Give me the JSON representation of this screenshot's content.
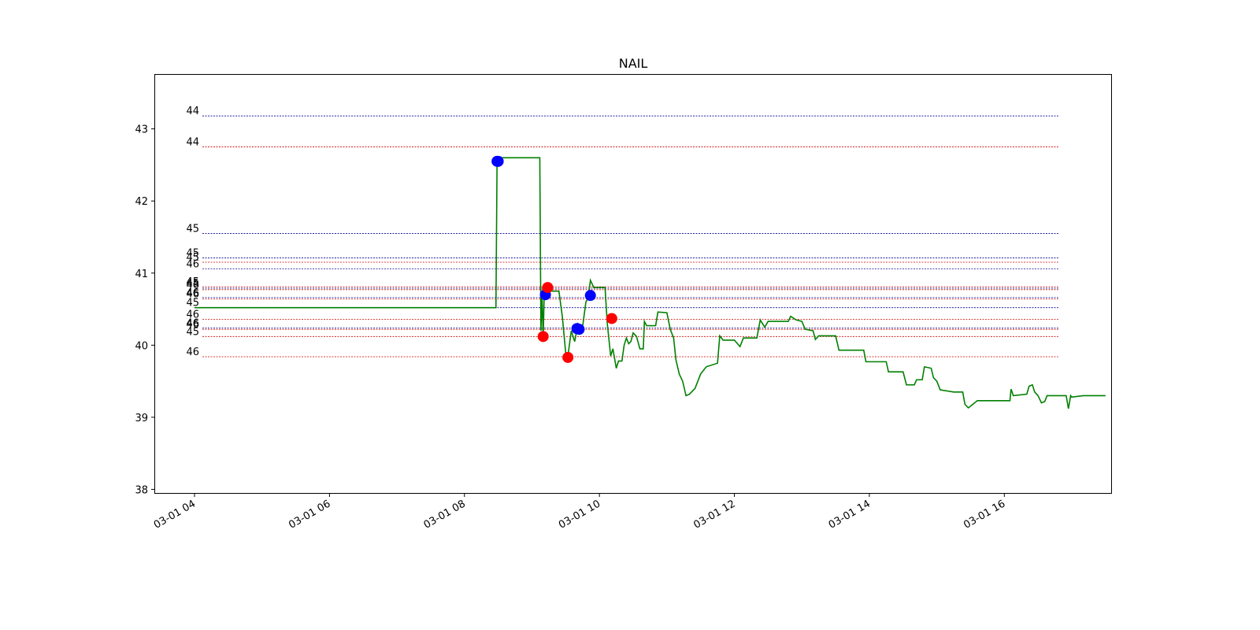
{
  "chart_data": {
    "type": "line",
    "title": "NAIL",
    "xlabel": "",
    "ylabel": "",
    "x_axis_type": "datetime",
    "xlim": [
      "03-01 03:25",
      "03-01 17:35"
    ],
    "ylim": [
      37.95,
      43.75
    ],
    "x_ticks": [
      {
        "t": "03-01 04:00",
        "label": "03-01 04"
      },
      {
        "t": "03-01 06:00",
        "label": "03-01 06"
      },
      {
        "t": "03-01 08:00",
        "label": "03-01 08"
      },
      {
        "t": "03-01 10:00",
        "label": "03-01 10"
      },
      {
        "t": "03-01 12:00",
        "label": "03-01 12"
      },
      {
        "t": "03-01 14:00",
        "label": "03-01 14"
      },
      {
        "t": "03-01 16:00",
        "label": "03-01 16"
      }
    ],
    "y_ticks": [
      38,
      39,
      40,
      41,
      42,
      43
    ],
    "grid": false,
    "legend": "none",
    "colors": {
      "price": "#008000",
      "buy_marker": "#0000ff",
      "sell_marker": "#ff0000",
      "blue_level": "#00008b",
      "red_level": "#cc0000"
    },
    "series": [
      {
        "kind": "line",
        "points": [
          [
            "03-01 04:00",
            40.52
          ],
          [
            "03-01 08:28",
            40.52
          ],
          [
            "03-01 08:29",
            42.55
          ],
          [
            "03-01 08:30",
            42.6
          ],
          [
            "03-01 09:07",
            42.6
          ],
          [
            "03-01 09:08",
            40.2
          ],
          [
            "03-01 09:09",
            40.7
          ],
          [
            "03-01 09:10",
            40.1
          ],
          [
            "03-01 09:11",
            40.75
          ],
          [
            "03-01 09:13",
            40.8
          ],
          [
            "03-01 09:15",
            40.75
          ],
          [
            "03-01 09:24",
            40.75
          ],
          [
            "03-01 09:27",
            40.4
          ],
          [
            "03-01 09:30",
            39.9
          ],
          [
            "03-01 09:32",
            39.85
          ],
          [
            "03-01 09:35",
            40.2
          ],
          [
            "03-01 09:38",
            40.05
          ],
          [
            "03-01 09:41",
            40.3
          ],
          [
            "03-01 09:45",
            40.25
          ],
          [
            "03-01 09:48",
            40.6
          ],
          [
            "03-01 09:50",
            40.65
          ],
          [
            "03-01 09:52",
            40.9
          ],
          [
            "03-01 09:55",
            40.8
          ],
          [
            "03-01 10:05",
            40.8
          ],
          [
            "03-01 10:07",
            40.3
          ],
          [
            "03-01 10:10",
            39.85
          ],
          [
            "03-01 10:12",
            39.95
          ],
          [
            "03-01 10:15",
            39.68
          ],
          [
            "03-01 10:17",
            39.78
          ],
          [
            "03-01 10:20",
            39.78
          ],
          [
            "03-01 10:22",
            40.0
          ],
          [
            "03-01 10:24",
            40.1
          ],
          [
            "03-01 10:26",
            40.02
          ],
          [
            "03-01 10:28",
            40.05
          ],
          [
            "03-01 10:30",
            40.17
          ],
          [
            "03-01 10:33",
            40.12
          ],
          [
            "03-01 10:36",
            39.95
          ],
          [
            "03-01 10:39",
            39.95
          ],
          [
            "03-01 10:40",
            40.33
          ],
          [
            "03-01 10:42",
            40.27
          ],
          [
            "03-01 10:50",
            40.27
          ],
          [
            "03-01 10:52",
            40.46
          ],
          [
            "03-01 11:00",
            40.45
          ],
          [
            "03-01 11:03",
            40.22
          ],
          [
            "03-01 11:06",
            40.1
          ],
          [
            "03-01 11:08",
            39.8
          ],
          [
            "03-01 11:11",
            39.6
          ],
          [
            "03-01 11:14",
            39.5
          ],
          [
            "03-01 11:17",
            39.3
          ],
          [
            "03-01 11:20",
            39.32
          ],
          [
            "03-01 11:25",
            39.4
          ],
          [
            "03-01 11:30",
            39.6
          ],
          [
            "03-01 11:35",
            39.7
          ],
          [
            "03-01 11:45",
            39.75
          ],
          [
            "03-01 11:47",
            40.13
          ],
          [
            "03-01 11:50",
            40.07
          ],
          [
            "03-01 12:00",
            40.07
          ],
          [
            "03-01 12:05",
            39.98
          ],
          [
            "03-01 12:08",
            40.1
          ],
          [
            "03-01 12:20",
            40.1
          ],
          [
            "03-01 12:23",
            40.35
          ],
          [
            "03-01 12:27",
            40.25
          ],
          [
            "03-01 12:30",
            40.33
          ],
          [
            "03-01 12:48",
            40.33
          ],
          [
            "03-01 12:50",
            40.4
          ],
          [
            "03-01 12:55",
            40.35
          ],
          [
            "03-01 13:00",
            40.33
          ],
          [
            "03-01 13:03",
            40.22
          ],
          [
            "03-01 13:10",
            40.2
          ],
          [
            "03-01 13:12",
            40.08
          ],
          [
            "03-01 13:15",
            40.13
          ],
          [
            "03-01 13:30",
            40.13
          ],
          [
            "03-01 13:33",
            39.93
          ],
          [
            "03-01 13:55",
            39.93
          ],
          [
            "03-01 13:57",
            39.77
          ],
          [
            "03-01 14:15",
            39.77
          ],
          [
            "03-01 14:17",
            39.63
          ],
          [
            "03-01 14:30",
            39.63
          ],
          [
            "03-01 14:33",
            39.45
          ],
          [
            "03-01 14:40",
            39.45
          ],
          [
            "03-01 14:42",
            39.52
          ],
          [
            "03-01 14:47",
            39.52
          ],
          [
            "03-01 14:49",
            39.7
          ],
          [
            "03-01 14:55",
            39.68
          ],
          [
            "03-01 14:57",
            39.55
          ],
          [
            "03-01 15:00",
            39.5
          ],
          [
            "03-01 15:03",
            39.38
          ],
          [
            "03-01 15:15",
            39.35
          ],
          [
            "03-01 15:23",
            39.35
          ],
          [
            "03-01 15:25",
            39.18
          ],
          [
            "03-01 15:28",
            39.13
          ],
          [
            "03-01 15:32",
            39.18
          ],
          [
            "03-01 15:36",
            39.23
          ],
          [
            "03-01 16:05",
            39.23
          ],
          [
            "03-01 16:06",
            39.39
          ],
          [
            "03-01 16:08",
            39.3
          ],
          [
            "03-01 16:20",
            39.32
          ],
          [
            "03-01 16:22",
            39.43
          ],
          [
            "03-01 16:25",
            39.45
          ],
          [
            "03-01 16:27",
            39.35
          ],
          [
            "03-01 16:30",
            39.3
          ],
          [
            "03-01 16:33",
            39.2
          ],
          [
            "03-01 16:36",
            39.22
          ],
          [
            "03-01 16:38",
            39.3
          ],
          [
            "03-01 16:55",
            39.3
          ],
          [
            "03-01 16:57",
            39.12
          ],
          [
            "03-01 16:59",
            39.3
          ],
          [
            "03-01 17:00",
            39.28
          ],
          [
            "03-01 17:10",
            39.3
          ],
          [
            "03-01 17:30",
            39.3
          ]
        ]
      },
      {
        "kind": "scatter",
        "color": "blue",
        "points": [
          [
            "03-01 08:29",
            42.55
          ],
          [
            "03-01 08:30",
            42.55
          ],
          [
            "03-01 09:12",
            40.7
          ],
          [
            "03-01 09:40",
            40.23
          ],
          [
            "03-01 09:42",
            40.22
          ],
          [
            "03-01 09:52",
            40.69
          ]
        ]
      },
      {
        "kind": "scatter",
        "color": "red",
        "points": [
          [
            "03-01 09:14",
            40.8
          ],
          [
            "03-01 09:10",
            40.12
          ],
          [
            "03-01 09:32",
            39.83
          ],
          [
            "03-01 10:11",
            40.37
          ]
        ]
      }
    ],
    "levels": [
      {
        "y": 43.18,
        "label": "44",
        "color": "blue"
      },
      {
        "y": 42.75,
        "label": "44",
        "color": "red"
      },
      {
        "y": 41.55,
        "label": "45",
        "color": "blue"
      },
      {
        "y": 41.21,
        "label": "45",
        "color": "blue"
      },
      {
        "y": 41.15,
        "label": "45",
        "color": "red"
      },
      {
        "y": 41.06,
        "label": "46",
        "color": "blue"
      },
      {
        "y": 40.81,
        "label": "45",
        "color": "red"
      },
      {
        "y": 40.79,
        "label": "45",
        "color": "blue"
      },
      {
        "y": 40.77,
        "label": "46",
        "color": "red"
      },
      {
        "y": 40.66,
        "label": "46",
        "color": "blue"
      },
      {
        "y": 40.64,
        "label": "46",
        "color": "red"
      },
      {
        "y": 40.52,
        "label": "45",
        "color": "blue"
      },
      {
        "y": 40.36,
        "label": "46",
        "color": "red"
      },
      {
        "y": 40.24,
        "label": "46",
        "color": "blue"
      },
      {
        "y": 40.22,
        "label": "46",
        "color": "red"
      },
      {
        "y": 40.12,
        "label": "45",
        "color": "red"
      },
      {
        "y": 39.84,
        "label": "46",
        "color": "red"
      }
    ]
  }
}
